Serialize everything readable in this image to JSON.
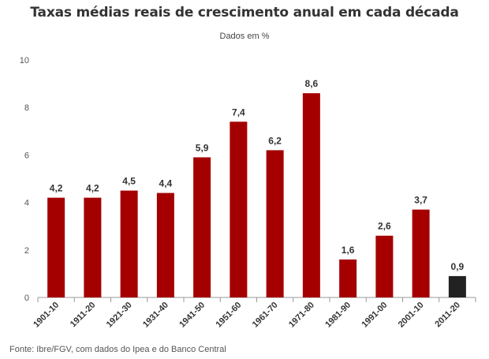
{
  "chart_data": {
    "type": "bar",
    "title": "Taxas médias reais de crescimento anual em cada década",
    "subtitle": "Dados em %",
    "categories": [
      "1901-10",
      "1911-20",
      "1921-30",
      "1931-40",
      "1941-50",
      "1951-60",
      "1961-70",
      "1971-80",
      "1981-90",
      "1991-00",
      "2001-10",
      "2011-20"
    ],
    "values": [
      4.2,
      4.2,
      4.5,
      4.4,
      5.9,
      7.4,
      6.2,
      8.6,
      1.6,
      2.6,
      3.7,
      0.9
    ],
    "value_labels": [
      "4,2",
      "4,2",
      "4,5",
      "4,4",
      "5,9",
      "7,4",
      "6,2",
      "8,6",
      "1,6",
      "2,6",
      "3,7",
      "0,9"
    ],
    "yticks": [
      "0",
      "2",
      "4",
      "6",
      "8",
      "10"
    ],
    "ylim": [
      0,
      10
    ],
    "grid": false,
    "colors": {
      "bar": "#a50000",
      "highlight": "#222222",
      "axis": "#999999"
    },
    "highlight_index": 11,
    "source": "Fonte: Ibre/FGV, com dados do Ipea e do Banco Central"
  }
}
